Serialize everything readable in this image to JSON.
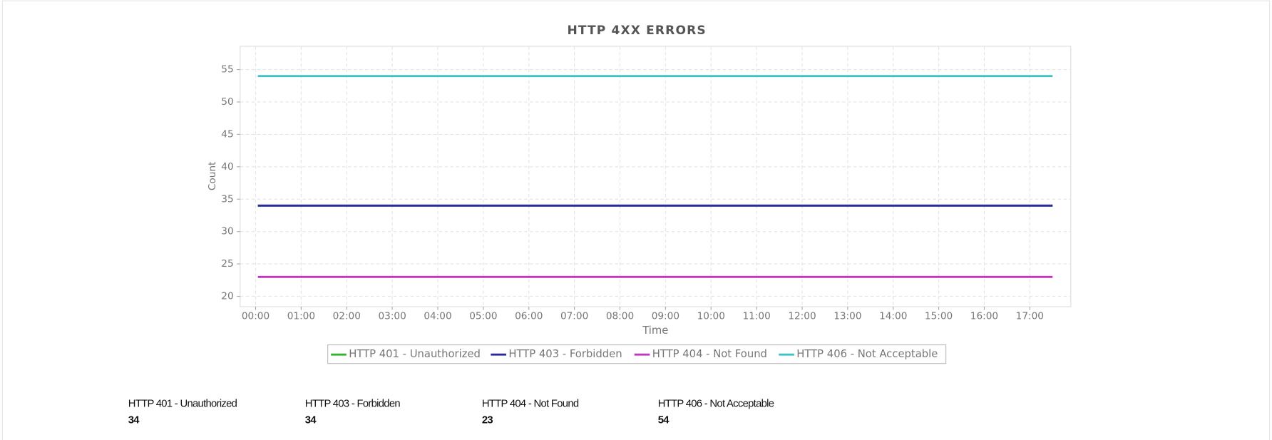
{
  "chart_data": {
    "type": "line",
    "title": "HTTP 4XX ERRORS",
    "x_label": "Time",
    "y_label": "Count",
    "xlim": [
      -0.34,
      17.9
    ],
    "xticks": [
      {
        "value": 0,
        "label": "00:00"
      },
      {
        "value": 1,
        "label": "01:00"
      },
      {
        "value": 2,
        "label": "02:00"
      },
      {
        "value": 3,
        "label": "03:00"
      },
      {
        "value": 4,
        "label": "04:00"
      },
      {
        "value": 5,
        "label": "05:00"
      },
      {
        "value": 6,
        "label": "06:00"
      },
      {
        "value": 7,
        "label": "07:00"
      },
      {
        "value": 8,
        "label": "08:00"
      },
      {
        "value": 9,
        "label": "09:00"
      },
      {
        "value": 10,
        "label": "10:00"
      },
      {
        "value": 11,
        "label": "11:00"
      },
      {
        "value": 12,
        "label": "12:00"
      },
      {
        "value": 13,
        "label": "13:00"
      },
      {
        "value": 14,
        "label": "14:00"
      },
      {
        "value": 15,
        "label": "15:00"
      },
      {
        "value": 16,
        "label": "16:00"
      },
      {
        "value": 17,
        "label": "17:00"
      }
    ],
    "ylim": [
      18.4,
      58.6
    ],
    "yticks": [
      20,
      25,
      30,
      35,
      40,
      45,
      50,
      55
    ],
    "grid": true,
    "x": [
      0.05,
      17.5
    ],
    "series": [
      {
        "name": "HTTP 401 - Unauthorized",
        "color": "#2fb52f",
        "values": [
          34,
          34
        ]
      },
      {
        "name": "HTTP 403 - Forbidden",
        "color": "#2a2a9e",
        "values": [
          34,
          34
        ]
      },
      {
        "name": "HTTP 404 - Not Found",
        "color": "#c234c2",
        "values": [
          23,
          23
        ]
      },
      {
        "name": "HTTP 406 - Not Acceptable",
        "color": "#3cc4c4",
        "values": [
          54,
          54
        ]
      }
    ],
    "legend": "bottom"
  }
}
